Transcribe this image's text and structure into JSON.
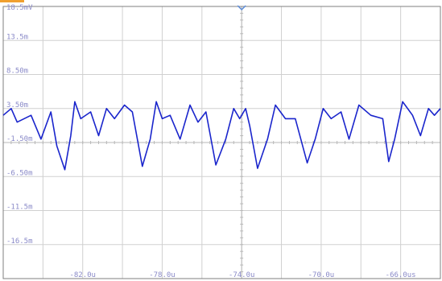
{
  "colors": {
    "trace": "#1a25cc",
    "grid": "#d0d0d0",
    "frame": "#7f7f7f",
    "labels": "#8a8ac8",
    "trigger_marker": "#5b8bd8",
    "accent_bar": "#f0a030"
  },
  "icons": {
    "trigger_marker": "chevron-down-icon"
  },
  "chart_data": {
    "type": "line",
    "title": "",
    "xlabel": "",
    "ylabel": "",
    "xlim": [
      -86.0,
      -64.0
    ],
    "ylim": [
      -21.5,
      18.5
    ],
    "x_tick_values": [
      -82.0,
      -78.0,
      -74.0,
      -70.0,
      -66.0
    ],
    "x_tick_labels": [
      "-82.0u",
      "-78.0u",
      "-74.0u",
      "-70.0u",
      "-66.0us"
    ],
    "y_tick_values": [
      18.5,
      13.5,
      8.5,
      3.5,
      -1.5,
      -6.5,
      -11.5,
      -16.5
    ],
    "y_tick_labels": [
      "18.5mV",
      "13.5m",
      "8.50m",
      "3.50m",
      "-1.50m",
      "-6.50m",
      "-11.5m",
      "-16.5m"
    ],
    "grid": true,
    "series": [
      {
        "x": [
          -86.0,
          -85.6,
          -85.3,
          -84.6,
          -84.1,
          -83.6,
          -83.3,
          -82.9,
          -82.6,
          -82.4,
          -82.1,
          -81.6,
          -81.2,
          -80.8,
          -80.4,
          -79.9,
          -79.5,
          -79.0,
          -78.6,
          -78.3,
          -78.0,
          -77.6,
          -77.1,
          -76.6,
          -76.2,
          -75.8,
          -75.3,
          -74.8,
          -74.4,
          -74.1,
          -73.8,
          -73.6,
          -73.2,
          -72.7,
          -72.3,
          -71.8,
          -71.3,
          -70.7,
          -70.3,
          -69.9,
          -69.5,
          -69.0,
          -68.6,
          -68.1,
          -67.5,
          -66.9,
          -66.6,
          -66.3,
          -65.9,
          -65.4,
          -65.0,
          -64.6,
          -64.3,
          -64.0
        ],
        "y": [
          2.5,
          3.5,
          1.5,
          2.5,
          -1.0,
          3.0,
          -2.0,
          -5.5,
          -0.5,
          4.5,
          2.0,
          3.0,
          -0.5,
          3.5,
          2.0,
          4.0,
          3.0,
          -5.0,
          -1.0,
          4.5,
          2.0,
          2.5,
          -1.0,
          4.0,
          1.5,
          3.0,
          -4.8,
          -1.0,
          3.5,
          2.0,
          3.5,
          1.0,
          -5.3,
          -1.0,
          4.0,
          2.0,
          2.0,
          -4.5,
          -1.0,
          3.5,
          2.0,
          3.0,
          -1.0,
          4.0,
          2.5,
          2.0,
          -4.3,
          -1.0,
          4.5,
          2.5,
          -0.5,
          3.5,
          2.5,
          3.5
        ]
      }
    ]
  }
}
